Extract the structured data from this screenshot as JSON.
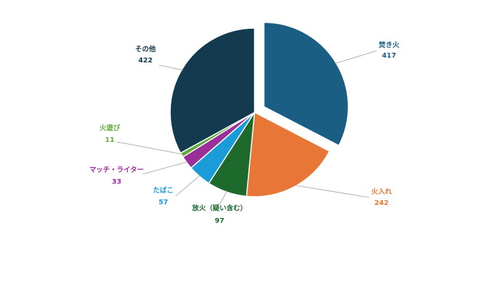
{
  "chart_data": {
    "type": "pie",
    "title": "",
    "exploded_slice": "焚き火",
    "slices": [
      {
        "label": "焚き火",
        "value": 417,
        "color": "#1b5e84",
        "exploded": true
      },
      {
        "label": "火入れ",
        "value": 242,
        "color": "#e87636",
        "exploded": false
      },
      {
        "label": "放火（疑い含む）",
        "value": 97,
        "color": "#1e6a2c",
        "exploded": false
      },
      {
        "label": "たばこ",
        "value": 57,
        "color": "#1b9cd8",
        "exploded": false
      },
      {
        "label": "マッチ・ライター",
        "value": 33,
        "color": "#9b2f99",
        "exploded": false
      },
      {
        "label": "火遊び",
        "value": 11,
        "color": "#5cad3a",
        "exploded": false
      },
      {
        "label": "その他",
        "value": 422,
        "color": "#143a4f",
        "exploded": false
      }
    ]
  }
}
